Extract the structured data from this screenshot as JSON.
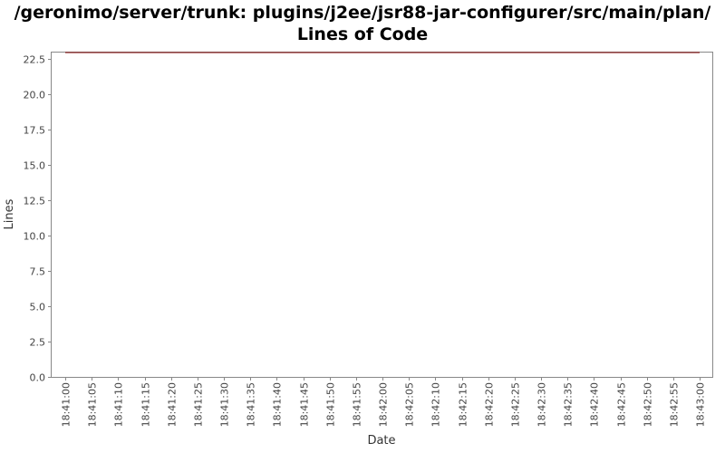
{
  "chart_data": {
    "type": "line",
    "title": {
      "line1": "/geronimo/server/trunk: plugins/j2ee/jsr88-jar-configurer/src/main/plan/",
      "line2": "Lines of Code"
    },
    "xlabel": "Date",
    "ylabel": "Lines",
    "ylim": [
      0,
      23
    ],
    "y_ticks": [
      "0.0",
      "2.5",
      "5.0",
      "7.5",
      "10.0",
      "12.5",
      "15.0",
      "17.5",
      "20.0",
      "22.5"
    ],
    "y_tick_values": [
      0,
      2.5,
      5,
      7.5,
      10,
      12.5,
      15,
      17.5,
      20,
      22.5
    ],
    "x_ticks": [
      "18:41:00",
      "18:41:05",
      "18:41:10",
      "18:41:15",
      "18:41:20",
      "18:41:25",
      "18:41:30",
      "18:41:35",
      "18:41:40",
      "18:41:45",
      "18:41:50",
      "18:41:55",
      "18:42:00",
      "18:42:05",
      "18:42:10",
      "18:42:15",
      "18:42:20",
      "18:42:25",
      "18:42:30",
      "18:42:35",
      "18:42:40",
      "18:42:45",
      "18:42:50",
      "18:42:55",
      "18:43:00"
    ],
    "grid": false,
    "series": [
      {
        "color": "#800000",
        "x": [
          "18:41:00",
          "18:43:00"
        ],
        "values": [
          23,
          23
        ]
      }
    ]
  }
}
